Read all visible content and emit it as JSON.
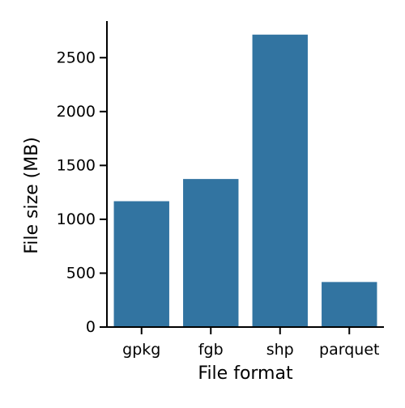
{
  "chart_data": {
    "type": "bar",
    "title": "",
    "xlabel": "File format",
    "ylabel": "File size (MB)",
    "categories": [
      "gpkg",
      "fgb",
      "shp",
      "parquet"
    ],
    "values": [
      1168,
      1374,
      2714,
      418
    ],
    "ylim": [
      0,
      2840
    ],
    "yticks": [
      0,
      500,
      1000,
      1500,
      2000,
      2500
    ],
    "ytick_labels": [
      "0",
      "500",
      "1000",
      "1500",
      "2000",
      "2500"
    ],
    "grid": false,
    "legend": "none",
    "bar_color": "#3274a1",
    "axis_color": "#000000",
    "spines": [
      "left",
      "bottom"
    ]
  }
}
